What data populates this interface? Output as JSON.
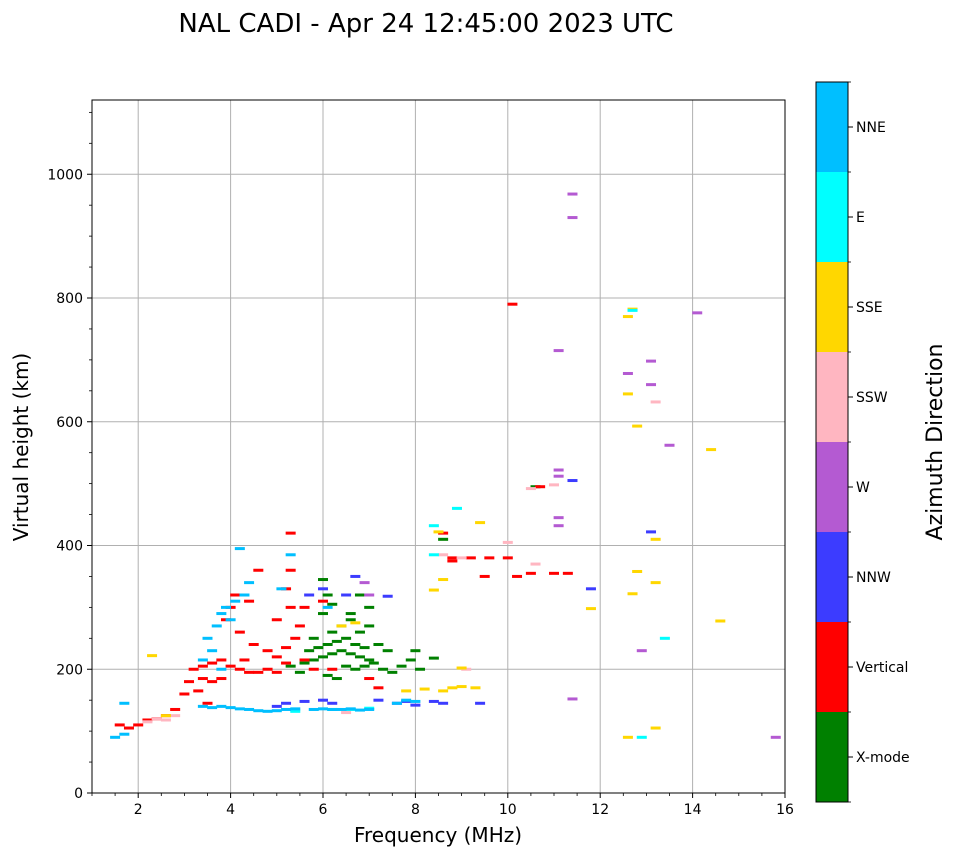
{
  "chart_data": {
    "type": "scatter",
    "title": "NAL CADI - Apr 24 12:45:00 2023 UTC",
    "xlabel": "Frequency (MHz)",
    "ylabel": "Virtual height (km)",
    "xlim": [
      1,
      16
    ],
    "ylim": [
      0,
      1120
    ],
    "grid": true,
    "x_ticks": [
      2,
      4,
      6,
      8,
      10,
      12,
      14,
      16
    ],
    "x_tick_labels": [
      "2",
      "4",
      "6",
      "8",
      "10",
      "12",
      "14",
      "16"
    ],
    "y_ticks": [
      0,
      200,
      400,
      600,
      800,
      1000
    ],
    "y_tick_labels": [
      "0",
      "200",
      "400",
      "600",
      "800",
      "1000"
    ],
    "colorbar": {
      "title": "Azimuth Direction",
      "categories": [
        "X-mode",
        "Vertical",
        "NNW",
        "W",
        "SSW",
        "SSE",
        "E",
        "NNE"
      ],
      "colors": [
        "#008000",
        "#ff0000",
        "#3c3cff",
        "#b45ad2",
        "#ffb6c1",
        "#ffd700",
        "#00ffff",
        "#00bfff"
      ]
    },
    "series": [
      {
        "name": "X-mode",
        "color": "#008000",
        "points": [
          [
            5.6,
            210
          ],
          [
            5.8,
            215
          ],
          [
            6.0,
            220
          ],
          [
            6.2,
            225
          ],
          [
            6.4,
            230
          ],
          [
            6.6,
            225
          ],
          [
            6.8,
            220
          ],
          [
            7.0,
            215
          ],
          [
            5.9,
            235
          ],
          [
            6.1,
            240
          ],
          [
            6.3,
            245
          ],
          [
            6.5,
            250
          ],
          [
            6.7,
            240
          ],
          [
            6.9,
            235
          ],
          [
            6.2,
            260
          ],
          [
            6.4,
            270
          ],
          [
            6.6,
            280
          ],
          [
            6.0,
            290
          ],
          [
            6.2,
            305
          ],
          [
            6.1,
            320
          ],
          [
            6.0,
            345
          ],
          [
            5.8,
            250
          ],
          [
            5.7,
            230
          ],
          [
            6.5,
            205
          ],
          [
            6.7,
            200
          ],
          [
            6.9,
            205
          ],
          [
            7.1,
            210
          ],
          [
            7.3,
            200
          ],
          [
            7.5,
            195
          ],
          [
            7.7,
            205
          ],
          [
            7.9,
            215
          ],
          [
            8.1,
            200
          ],
          [
            8.4,
            218
          ],
          [
            7.4,
            230
          ],
          [
            7.2,
            240
          ],
          [
            6.8,
            260
          ],
          [
            6.6,
            290
          ],
          [
            7.0,
            270
          ],
          [
            5.5,
            195
          ],
          [
            5.3,
            205
          ],
          [
            6.3,
            185
          ],
          [
            6.1,
            190
          ],
          [
            6.8,
            320
          ],
          [
            7.0,
            300
          ],
          [
            8.0,
            230
          ],
          [
            8.6,
            410
          ],
          [
            10.6,
            495
          ]
        ]
      },
      {
        "name": "Vertical",
        "color": "#ff0000",
        "points": [
          [
            1.6,
            110
          ],
          [
            1.8,
            105
          ],
          [
            2.0,
            110
          ],
          [
            2.2,
            118
          ],
          [
            2.4,
            120
          ],
          [
            2.6,
            125
          ],
          [
            2.8,
            135
          ],
          [
            3.0,
            160
          ],
          [
            3.1,
            180
          ],
          [
            3.2,
            200
          ],
          [
            3.4,
            205
          ],
          [
            3.6,
            210
          ],
          [
            3.8,
            215
          ],
          [
            4.0,
            205
          ],
          [
            4.2,
            200
          ],
          [
            4.4,
            195
          ],
          [
            4.6,
            195
          ],
          [
            4.8,
            200
          ],
          [
            5.0,
            195
          ],
          [
            5.2,
            210
          ],
          [
            3.4,
            185
          ],
          [
            3.6,
            180
          ],
          [
            3.8,
            185
          ],
          [
            4.0,
            300
          ],
          [
            4.1,
            320
          ],
          [
            3.9,
            280
          ],
          [
            4.2,
            260
          ],
          [
            4.5,
            240
          ],
          [
            4.8,
            230
          ],
          [
            5.0,
            220
          ],
          [
            5.2,
            235
          ],
          [
            5.4,
            250
          ],
          [
            5.5,
            270
          ],
          [
            5.3,
            300
          ],
          [
            5.2,
            330
          ],
          [
            5.3,
            360
          ],
          [
            5.3,
            420
          ],
          [
            4.6,
            360
          ],
          [
            4.4,
            310
          ],
          [
            5.0,
            280
          ],
          [
            5.6,
            300
          ],
          [
            6.0,
            310
          ],
          [
            6.2,
            200
          ],
          [
            3.3,
            165
          ],
          [
            3.5,
            145
          ],
          [
            4.3,
            215
          ],
          [
            5.6,
            215
          ],
          [
            5.8,
            200
          ],
          [
            8.8,
            380
          ],
          [
            9.2,
            380
          ],
          [
            9.6,
            380
          ],
          [
            10.0,
            380
          ],
          [
            10.2,
            350
          ],
          [
            10.5,
            355
          ],
          [
            11.0,
            355
          ],
          [
            11.3,
            355
          ],
          [
            9.5,
            350
          ],
          [
            10.1,
            790
          ],
          [
            10.7,
            495
          ],
          [
            7.2,
            170
          ],
          [
            7.0,
            185
          ],
          [
            8.6,
            420
          ],
          [
            8.8,
            375
          ]
        ]
      },
      {
        "name": "NNW",
        "color": "#3c3cff",
        "points": [
          [
            5.0,
            140
          ],
          [
            5.2,
            145
          ],
          [
            5.6,
            148
          ],
          [
            6.0,
            150
          ],
          [
            6.2,
            145
          ],
          [
            7.2,
            150
          ],
          [
            7.6,
            145
          ],
          [
            7.8,
            148
          ],
          [
            8.0,
            142
          ],
          [
            8.4,
            148
          ],
          [
            8.6,
            145
          ],
          [
            9.4,
            145
          ],
          [
            6.7,
            350
          ],
          [
            7.4,
            318
          ],
          [
            6.5,
            320
          ],
          [
            11.4,
            505
          ],
          [
            11.8,
            330
          ],
          [
            13.1,
            422
          ],
          [
            6.0,
            330
          ],
          [
            5.7,
            320
          ]
        ]
      },
      {
        "name": "W",
        "color": "#b45ad2",
        "points": [
          [
            11.4,
            968
          ],
          [
            11.4,
            930
          ],
          [
            11.1,
            715
          ],
          [
            13.1,
            698
          ],
          [
            12.6,
            678
          ],
          [
            13.1,
            660
          ],
          [
            13.5,
            562
          ],
          [
            11.1,
            522
          ],
          [
            11.1,
            512
          ],
          [
            11.1,
            445
          ],
          [
            11.1,
            432
          ],
          [
            12.9,
            230
          ],
          [
            11.4,
            152
          ],
          [
            15.8,
            90
          ],
          [
            14.1,
            776
          ],
          [
            6.9,
            340
          ],
          [
            7.0,
            320
          ]
        ]
      },
      {
        "name": "SSW",
        "color": "#ffb6c1",
        "points": [
          [
            2.4,
            120
          ],
          [
            2.6,
            118
          ],
          [
            2.8,
            125
          ],
          [
            13.2,
            632
          ],
          [
            10.5,
            492
          ],
          [
            11.0,
            498
          ],
          [
            8.6,
            385
          ],
          [
            9.0,
            380
          ],
          [
            10.0,
            405
          ],
          [
            10.6,
            370
          ],
          [
            6.5,
            130
          ],
          [
            9.1,
            200
          ],
          [
            2.2,
            115
          ]
        ]
      },
      {
        "name": "SSE",
        "color": "#ffd700",
        "points": [
          [
            12.7,
            782
          ],
          [
            12.6,
            770
          ],
          [
            12.6,
            645
          ],
          [
            12.8,
            593
          ],
          [
            14.4,
            555
          ],
          [
            13.2,
            410
          ],
          [
            9.4,
            437
          ],
          [
            8.5,
            422
          ],
          [
            8.4,
            328
          ],
          [
            12.7,
            322
          ],
          [
            12.8,
            358
          ],
          [
            13.2,
            340
          ],
          [
            11.8,
            298
          ],
          [
            14.6,
            278
          ],
          [
            8.6,
            345
          ],
          [
            8.8,
            170
          ],
          [
            9.0,
            172
          ],
          [
            9.3,
            170
          ],
          [
            8.6,
            165
          ],
          [
            13.2,
            105
          ],
          [
            12.6,
            90
          ],
          [
            2.3,
            222
          ],
          [
            7.8,
            165
          ],
          [
            8.2,
            168
          ],
          [
            9.0,
            202
          ],
          [
            2.6,
            125
          ],
          [
            6.7,
            275
          ],
          [
            6.4,
            270
          ]
        ]
      },
      {
        "name": "E",
        "color": "#00ffff",
        "points": [
          [
            12.7,
            780
          ],
          [
            8.4,
            432
          ],
          [
            8.9,
            460
          ],
          [
            8.4,
            385
          ],
          [
            12.9,
            90
          ],
          [
            13.4,
            250
          ],
          [
            6.2,
            135
          ],
          [
            6.6,
            135
          ],
          [
            7.0,
            137
          ],
          [
            5.4,
            132
          ]
        ]
      },
      {
        "name": "NNE",
        "color": "#00bfff",
        "points": [
          [
            3.4,
            140
          ],
          [
            3.6,
            138
          ],
          [
            3.8,
            140
          ],
          [
            4.0,
            138
          ],
          [
            4.2,
            136
          ],
          [
            4.4,
            135
          ],
          [
            4.6,
            133
          ],
          [
            4.8,
            132
          ],
          [
            5.0,
            133
          ],
          [
            5.2,
            135
          ],
          [
            5.4,
            136
          ],
          [
            5.8,
            135
          ],
          [
            6.0,
            136
          ],
          [
            6.2,
            135
          ],
          [
            6.4,
            135
          ],
          [
            6.6,
            136
          ],
          [
            6.8,
            134
          ],
          [
            7.0,
            135
          ],
          [
            7.6,
            145
          ],
          [
            7.8,
            150
          ],
          [
            8.0,
            148
          ],
          [
            3.5,
            250
          ],
          [
            3.7,
            270
          ],
          [
            3.8,
            290
          ],
          [
            3.9,
            300
          ],
          [
            4.1,
            310
          ],
          [
            4.3,
            320
          ],
          [
            4.4,
            340
          ],
          [
            4.2,
            395
          ],
          [
            4.0,
            280
          ],
          [
            3.6,
            230
          ],
          [
            3.4,
            215
          ],
          [
            5.3,
            385
          ],
          [
            5.1,
            330
          ],
          [
            6.1,
            300
          ],
          [
            1.7,
            95
          ],
          [
            1.5,
            90
          ],
          [
            3.8,
            200
          ],
          [
            1.7,
            145
          ]
        ]
      }
    ]
  }
}
